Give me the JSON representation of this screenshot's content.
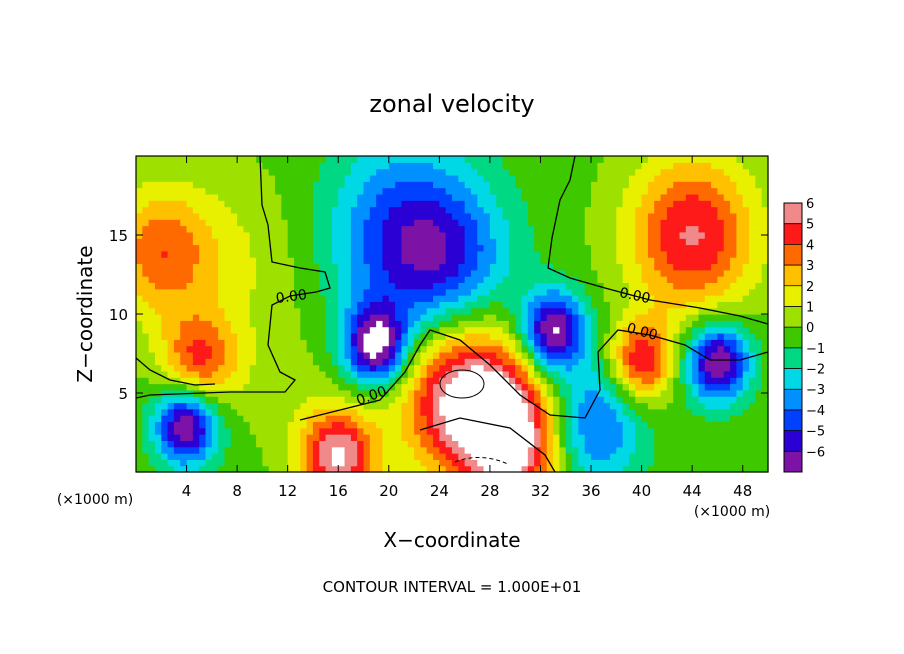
{
  "chart_data": {
    "type": "heatmap",
    "title": "zonal velocity",
    "xlabel": "X−coordinate",
    "ylabel": "Z−coordinate",
    "x_unit": "(×1000 m)",
    "z_unit": "(×1000 m)",
    "xlim": [
      0,
      50
    ],
    "ylim": [
      0,
      20
    ],
    "x_ticks": [
      4,
      8,
      12,
      16,
      20,
      24,
      28,
      32,
      36,
      40,
      44,
      48
    ],
    "y_ticks": [
      5,
      10,
      15
    ],
    "colorbar": {
      "ticks": [
        6,
        5,
        4,
        3,
        2,
        1,
        0,
        -1,
        -2,
        -3,
        -4,
        -5,
        -6
      ],
      "range": [
        -6,
        6
      ],
      "out_of_range_color": "#ffffff"
    },
    "contour_labels": [
      "0.00",
      "0.00",
      "0.00",
      "0.00"
    ],
    "footer": "CONTOUR INTERVAL = 1.000E+01",
    "features": [
      {
        "x": 44,
        "z": 15,
        "value": 5,
        "r": 5
      },
      {
        "x": 2,
        "z": 14,
        "value": 3.5,
        "r": 4
      },
      {
        "x": 21,
        "z": 15,
        "value": -4,
        "r": 6
      },
      {
        "x": 25,
        "z": 13,
        "value": -3,
        "r": 5
      },
      {
        "x": 8,
        "z": 13,
        "value": 1.2,
        "r": 6
      },
      {
        "x": 5,
        "z": 7,
        "value": 4,
        "r": 3
      },
      {
        "x": 26,
        "z": 5,
        "value": 6.5,
        "r": 5
      },
      {
        "x": 30,
        "z": 2,
        "value": 6,
        "r": 4
      },
      {
        "x": 16,
        "z": 1,
        "value": 6,
        "r": 3
      },
      {
        "x": 40,
        "z": 7,
        "value": 5,
        "r": 2.5
      },
      {
        "x": 46,
        "z": 7,
        "value": -6.5,
        "r": 2.5
      },
      {
        "x": 33,
        "z": 9,
        "value": -6.5,
        "r": 2.5
      },
      {
        "x": 19,
        "z": 8,
        "value": -6.5,
        "r": 2.5
      },
      {
        "x": 4,
        "z": 3,
        "value": -6.5,
        "r": 2.5
      },
      {
        "x": 36,
        "z": 3,
        "value": -4,
        "r": 4
      },
      {
        "x": 12,
        "z": 5,
        "value": 0.5,
        "r": 4
      }
    ]
  },
  "colors": {
    "palette": [
      "#7c12a6",
      "#2a00d5",
      "#0040ff",
      "#0090ff",
      "#00d8e6",
      "#00d884",
      "#3ec800",
      "#9ee000",
      "#e8f000",
      "#ffc000",
      "#ff6a00",
      "#ff1a1a",
      "#f08a8a"
    ]
  }
}
